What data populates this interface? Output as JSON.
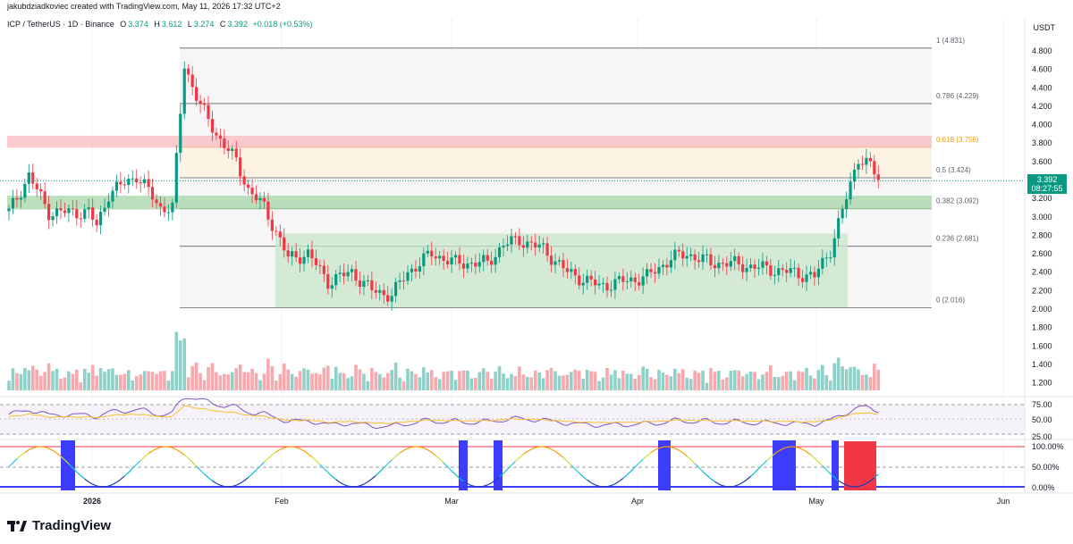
{
  "header": {
    "attribution": "jakubdziadkoviec created with TradingView.com, May 11, 2026 17:32 UTC+2",
    "symbol": "ICP / TetherUS · 1D · Binance",
    "open_label": "O",
    "open": "3.374",
    "high_label": "H",
    "high": "3.612",
    "low_label": "L",
    "low": "3.274",
    "close_label": "C",
    "close": "3.392",
    "change": "+0.018 (+0.53%)"
  },
  "currency": "USDT",
  "last_price": {
    "value": "3.392",
    "countdown": "08:27:55"
  },
  "colors": {
    "up": "#089981",
    "down": "#f23645",
    "up_volume": "#8fd1c8",
    "down_volume": "#f7a9ad",
    "fib_gold": "#ff9800",
    "rsi_line": "#7e57c2",
    "rsi_ma": "#fbc02d",
    "osc_bar": "#3d3dff",
    "osc_red": "#f23645"
  },
  "price_axis": {
    "ticks": [
      "4.800",
      "4.600",
      "4.400",
      "4.200",
      "4.000",
      "3.800",
      "3.600",
      "3.400",
      "3.200",
      "3.000",
      "2.800",
      "2.600",
      "2.400",
      "2.200",
      "2.000",
      "1.800",
      "1.600",
      "1.400",
      "1.200"
    ]
  },
  "fib_levels": [
    {
      "label": "1 (4.831)",
      "value": 4.831
    },
    {
      "label": "0.786 (4.229)",
      "value": 4.229
    },
    {
      "label": "0.618 (3.756)",
      "value": 3.756
    },
    {
      "label": "0.5 (3.424)",
      "value": 3.424
    },
    {
      "label": "0.382 (3.092)",
      "value": 3.092
    },
    {
      "label": "0.236 (2.681)",
      "value": 2.681
    },
    {
      "label": "0 (2.016)",
      "value": 2.016
    }
  ],
  "zones": {
    "resistance": [
      3.75,
      3.88
    ],
    "support": [
      3.08,
      3.23
    ],
    "range": [
      2.02,
      2.82
    ]
  },
  "rsi_axis": {
    "ticks": [
      "75.00",
      "50.00",
      "25.00"
    ]
  },
  "osc_axis": {
    "ticks": [
      "100.00%",
      "50.00%",
      "0.00%"
    ]
  },
  "time_axis": {
    "labels": [
      "2026",
      "Feb",
      "Mar",
      "Apr",
      "May",
      "Jun"
    ]
  },
  "brand": {
    "name": "TradingView"
  }
}
